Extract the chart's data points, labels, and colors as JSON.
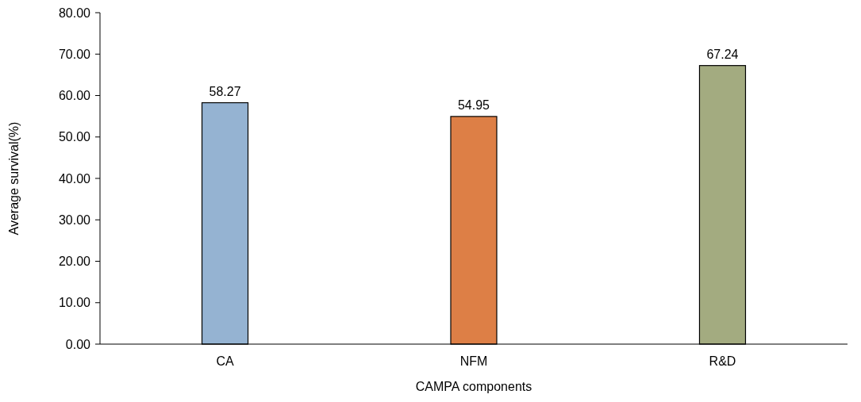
{
  "chart_data": {
    "type": "bar",
    "xlabel": "CAMPA components",
    "ylabel": "Average survival(%)",
    "categories": [
      "CA",
      "NFM",
      "R&D"
    ],
    "values": [
      58.27,
      54.95,
      67.24
    ],
    "colors": [
      "#95b3d2",
      "#dd7f46",
      "#a3ab80"
    ],
    "ylim": [
      0,
      80
    ],
    "yticks": [
      {
        "value": 0,
        "label": "0.00"
      },
      {
        "value": 10,
        "label": "10.00"
      },
      {
        "value": 20,
        "label": "20.00"
      },
      {
        "value": 30,
        "label": "30.00"
      },
      {
        "value": 40,
        "label": "40.00"
      },
      {
        "value": 50,
        "label": "50.00"
      },
      {
        "value": 60,
        "label": "60.00"
      },
      {
        "value": 70,
        "label": "70.00"
      },
      {
        "value": 80,
        "label": "80.00"
      }
    ],
    "data_labels": true,
    "grid": false
  }
}
